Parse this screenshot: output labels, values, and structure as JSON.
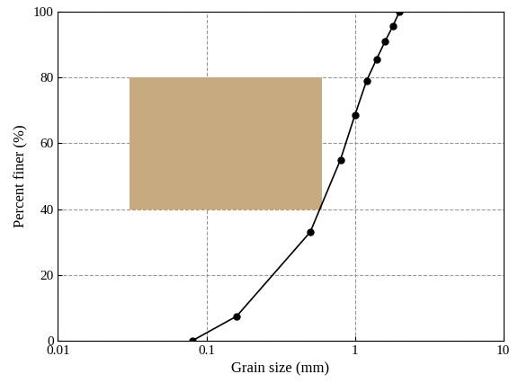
{
  "chart_data": {
    "type": "line",
    "x_label": "Grain size (mm)",
    "y_label": "Percent finer (%)",
    "x": [
      0.08,
      0.16,
      0.5,
      0.8,
      1.0,
      1.2,
      1.4,
      1.6,
      1.8,
      2.0
    ],
    "values": [
      0,
      7.5,
      33,
      55,
      68.5,
      79,
      85.5,
      91,
      95.5,
      100
    ],
    "color": "#000000",
    "marker": "o",
    "line_style": "solid",
    "log": "x",
    "xlim": [
      0.01,
      10
    ],
    "xticks": [
      0.01,
      0.1,
      1,
      10
    ],
    "ylim": [
      0,
      100
    ],
    "yticks": [
      0,
      20,
      40,
      60,
      80,
      100
    ],
    "grid": true
  }
}
